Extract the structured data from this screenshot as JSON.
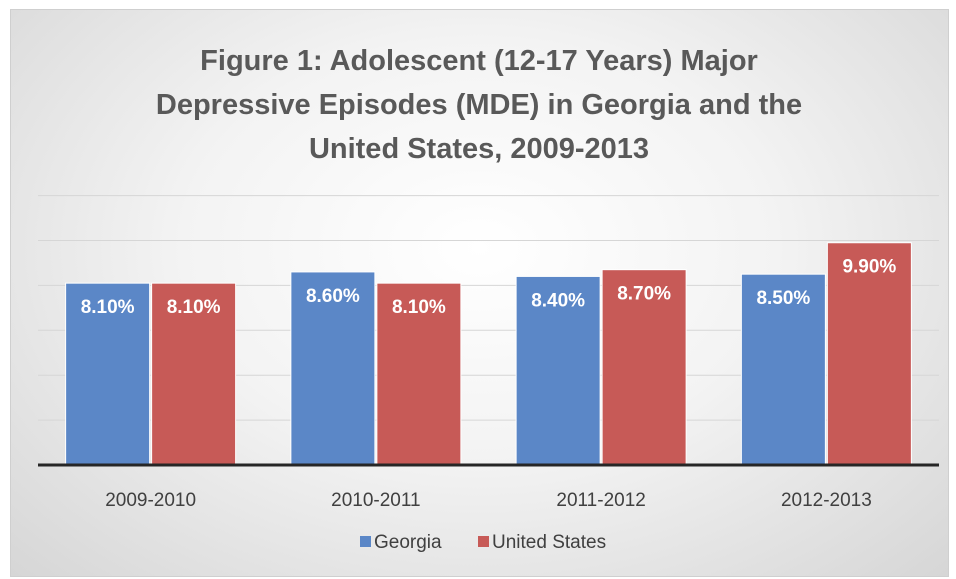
{
  "chart_data": {
    "type": "bar",
    "title_lines": [
      "Figure 1: Adolescent (12-17 Years) Major",
      "Depressive Episodes (MDE) in Georgia and the",
      "United States, 2009-2013"
    ],
    "categories": [
      "2009-2010",
      "2010-2011",
      "2011-2012",
      "2012-2013"
    ],
    "series": [
      {
        "name": "Georgia",
        "color": "#5b87c7",
        "values": [
          8.1,
          8.6,
          8.4,
          8.5
        ],
        "labels": [
          "8.10%",
          "8.60%",
          "8.40%",
          "8.50%"
        ]
      },
      {
        "name": "United States",
        "color": "#c75a57",
        "values": [
          8.1,
          8.1,
          8.7,
          9.9
        ],
        "labels": [
          "8.10%",
          "8.10%",
          "8.70%",
          "9.90%"
        ]
      }
    ],
    "ylim": [
      -10.5,
      12
    ],
    "grid": true,
    "legend_position": "bottom",
    "xlabel": "",
    "ylabel": ""
  }
}
